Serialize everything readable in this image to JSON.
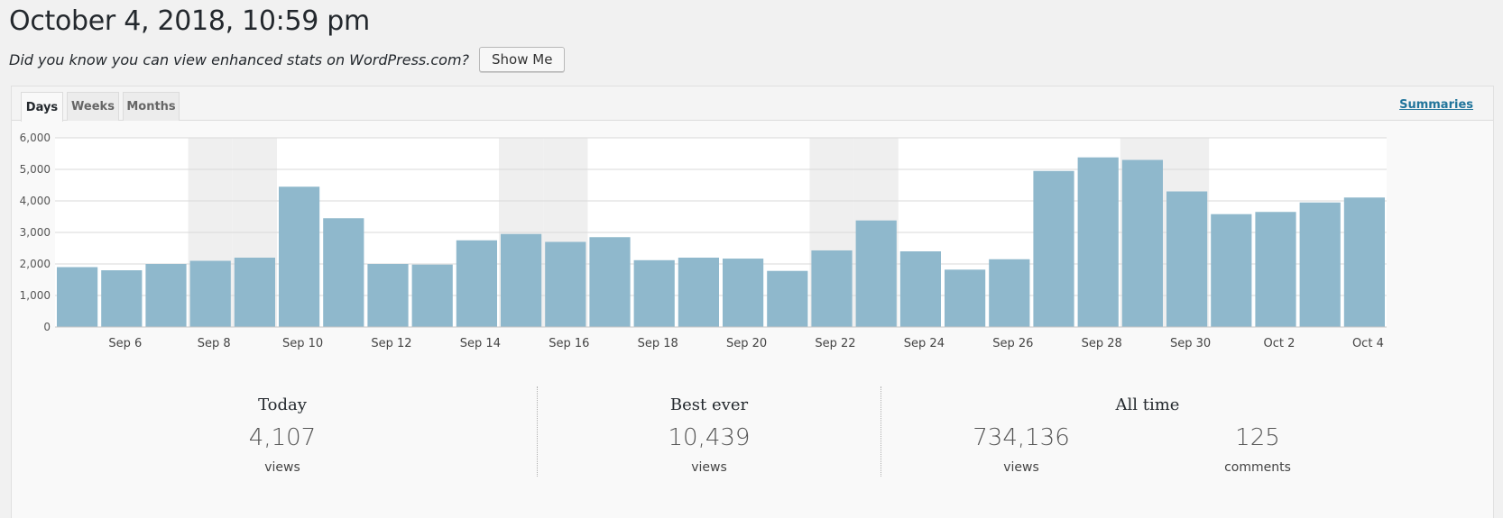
{
  "page": {
    "title": "October 4, 2018, 10:59 pm",
    "notice_text": "Did you know you can view enhanced stats on WordPress.com?",
    "show_me_label": "Show Me"
  },
  "tabs": [
    {
      "label": "Days",
      "active": true
    },
    {
      "label": "Weeks",
      "active": false
    },
    {
      "label": "Months",
      "active": false
    }
  ],
  "summaries_label": "Summaries",
  "colors": {
    "bar": "#8fb8cc",
    "weekend_band": "#efefef",
    "grid": "#d9d9d9",
    "link": "#21759b"
  },
  "chart_data": {
    "type": "bar",
    "categories": [
      "Sep 5",
      "Sep 6",
      "Sep 7",
      "Sep 8",
      "Sep 9",
      "Sep 10",
      "Sep 11",
      "Sep 12",
      "Sep 13",
      "Sep 14",
      "Sep 15",
      "Sep 16",
      "Sep 17",
      "Sep 18",
      "Sep 19",
      "Sep 20",
      "Sep 21",
      "Sep 22",
      "Sep 23",
      "Sep 24",
      "Sep 25",
      "Sep 26",
      "Sep 27",
      "Sep 28",
      "Sep 29",
      "Sep 30",
      "Oct 1",
      "Oct 2",
      "Oct 3",
      "Oct 4"
    ],
    "values": [
      1900,
      1800,
      2000,
      2100,
      2200,
      4450,
      3450,
      2000,
      1980,
      2750,
      2950,
      2700,
      2850,
      2120,
      2200,
      2170,
      1780,
      2430,
      3380,
      2400,
      1820,
      2150,
      4950,
      5380,
      5300,
      4300,
      3580,
      3650,
      3950,
      4107
    ],
    "x_tick_labels": [
      "Sep 6",
      "Sep 8",
      "Sep 10",
      "Sep 12",
      "Sep 14",
      "Sep 16",
      "Sep 18",
      "Sep 20",
      "Sep 22",
      "Sep 24",
      "Sep 26",
      "Sep 28",
      "Sep 30",
      "Oct 2",
      "Oct 4"
    ],
    "y_tick_labels": [
      "6,000",
      "5,000",
      "4,000",
      "3,000",
      "2,000",
      "1,000",
      "0"
    ],
    "ylim": [
      0,
      6000
    ],
    "weekend_days": [
      "Sep 8",
      "Sep 9",
      "Sep 15",
      "Sep 16",
      "Sep 22",
      "Sep 23",
      "Sep 29",
      "Sep 30"
    ],
    "grid": true
  },
  "stats": {
    "today": {
      "heading": "Today",
      "value": "4,107",
      "unit": "views"
    },
    "best_ever": {
      "heading": "Best ever",
      "value": "10,439",
      "unit": "views"
    },
    "all_time": {
      "heading": "All time",
      "views_value": "734,136",
      "views_unit": "views",
      "comments_value": "125",
      "comments_unit": "comments"
    }
  }
}
